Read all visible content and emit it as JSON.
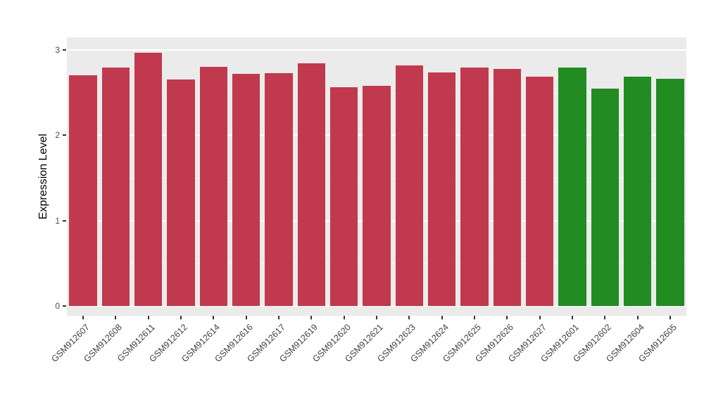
{
  "chart_data": {
    "type": "bar",
    "title": "",
    "xlabel": "",
    "ylabel": "Expression Level",
    "ylim": [
      0,
      3.15
    ],
    "yticks": [
      0,
      1,
      2,
      3
    ],
    "yticks_minor": [
      0.5,
      1.5,
      2.5
    ],
    "grid": true,
    "legend_position": "none",
    "categories": [
      "GSM912607",
      "GSM912608",
      "GSM912611",
      "GSM912612",
      "GSM912614",
      "GSM912616",
      "GSM912617",
      "GSM912619",
      "GSM912620",
      "GSM912621",
      "GSM912623",
      "GSM912624",
      "GSM912625",
      "GSM912626",
      "GSM912627",
      "GSM912601",
      "GSM912602",
      "GSM912604",
      "GSM912605"
    ],
    "values": [
      2.7,
      2.79,
      2.97,
      2.65,
      2.8,
      2.72,
      2.73,
      2.84,
      2.56,
      2.58,
      2.82,
      2.74,
      2.79,
      2.78,
      2.69,
      2.79,
      2.55,
      2.69,
      2.66
    ],
    "colors": [
      "#c0394e",
      "#c0394e",
      "#c0394e",
      "#c0394e",
      "#c0394e",
      "#c0394e",
      "#c0394e",
      "#c0394e",
      "#c0394e",
      "#c0394e",
      "#c0394e",
      "#c0394e",
      "#c0394e",
      "#c0394e",
      "#c0394e",
      "#228b22",
      "#228b22",
      "#228b22",
      "#228b22"
    ]
  },
  "style": {
    "panel_background": "#ebebeb",
    "grid_major_color": "#ffffff",
    "grid_minor_color": "#f7f7f7",
    "tick_color": "#333333",
    "outer_background": "#ffffff",
    "group_color_red": "#c0394e",
    "group_color_green": "#228b22"
  }
}
